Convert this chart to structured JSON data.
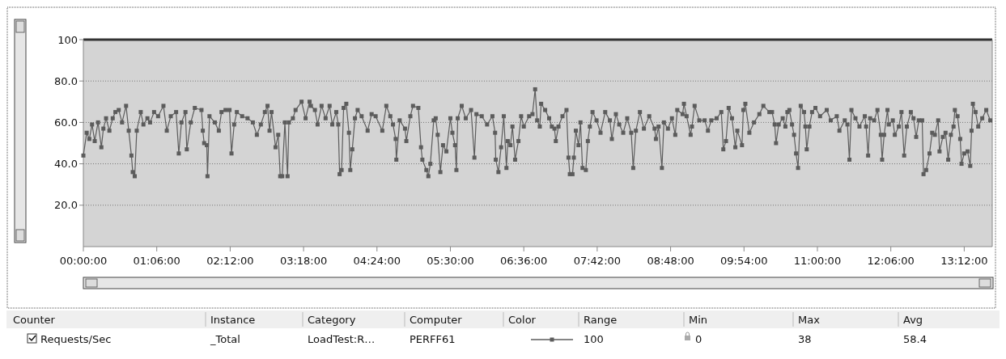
{
  "chart_data": {
    "type": "line",
    "legend": "bottom",
    "grid": "y",
    "marker": "square",
    "line_style": "solid",
    "ylim": [
      0,
      100
    ],
    "yticks": [
      {
        "value": 20,
        "label": "20.0"
      },
      {
        "value": 40,
        "label": "40.0"
      },
      {
        "value": 60,
        "label": "60.0"
      },
      {
        "value": 80,
        "label": "80.0"
      },
      100
    ],
    "xlim": [
      0,
      13.62
    ],
    "xticks": [
      {
        "value": 0,
        "label": "00:00:00"
      },
      {
        "value": 1.1,
        "label": "01:06:00"
      },
      {
        "value": 2.2,
        "label": "02:12:00"
      },
      {
        "value": 3.3,
        "label": "03:18:00"
      },
      {
        "value": 4.4,
        "label": "04:24:00"
      },
      {
        "value": 5.5,
        "label": "05:30:00"
      },
      {
        "value": 6.6,
        "label": "06:36:00"
      },
      {
        "value": 7.7,
        "label": "07:42:00"
      },
      {
        "value": 8.8,
        "label": "08:48:00"
      },
      {
        "value": 9.9,
        "label": "09:54:00"
      },
      {
        "value": 11,
        "label": "11:00:00"
      },
      {
        "value": 12.1,
        "label": "12:06:00"
      },
      {
        "value": 13.2,
        "label": "13:12:00"
      }
    ],
    "annotations": [
      "Counter",
      "Instance",
      "Category",
      "Computer",
      "Color",
      "Range",
      "Min",
      "Max",
      "Avg",
      "_Total",
      "LoadTest:R…",
      "PERFF61",
      "100",
      "0",
      "38",
      "58.4"
    ],
    "series": [
      {
        "name": "Requests/Sec",
        "color": "#5c5c5c",
        "x": [
          0,
          0.05,
          0.09,
          0.13,
          0.17,
          0.22,
          0.27,
          0.3,
          0.34,
          0.39,
          0.44,
          0.48,
          0.53,
          0.58,
          0.64,
          0.68,
          0.72,
          0.74,
          0.77,
          0.8,
          0.86,
          0.9,
          0.96,
          1,
          1.06,
          1.12,
          1.2,
          1.25,
          1.31,
          1.39,
          1.43,
          1.47,
          1.53,
          1.55,
          1.61,
          1.67,
          1.77,
          1.79,
          1.81,
          1.85,
          1.86,
          1.89,
          1.97,
          2.03,
          2.07,
          2.13,
          2.19,
          2.22,
          2.26,
          2.3,
          2.38,
          2.46,
          2.54,
          2.6,
          2.66,
          2.72,
          2.76,
          2.79,
          2.82,
          2.88,
          2.92,
          2.95,
          2.98,
          3.02,
          3.06,
          3.08,
          3.14,
          3.18,
          3.27,
          3.33,
          3.39,
          3.41,
          3.47,
          3.51,
          3.57,
          3.63,
          3.69,
          3.73,
          3.79,
          3.82,
          3.84,
          3.87,
          3.9,
          3.94,
          3.98,
          4,
          4.03,
          4.07,
          4.11,
          4.17,
          4.26,
          4.32,
          4.38,
          4.48,
          4.54,
          4.6,
          4.64,
          4.68,
          4.69,
          4.74,
          4.82,
          4.84,
          4.9,
          4.94,
          5.02,
          5.06,
          5.08,
          5.14,
          5.17,
          5.2,
          5.25,
          5.28,
          5.31,
          5.35,
          5.39,
          5.44,
          5.5,
          5.53,
          5.57,
          5.59,
          5.61,
          5.67,
          5.73,
          5.81,
          5.86,
          5.89,
          5.97,
          6.05,
          6.13,
          6.17,
          6.18,
          6.22,
          6.26,
          6.3,
          6.34,
          6.36,
          6.4,
          6.43,
          6.47,
          6.52,
          6.56,
          6.6,
          6.68,
          6.73,
          6.77,
          6.8,
          6.84,
          6.86,
          6.92,
          6.98,
          7.02,
          7.06,
          7.08,
          7.12,
          7.18,
          7.24,
          7.27,
          7.29,
          7.33,
          7.35,
          7.38,
          7.42,
          7.45,
          7.48,
          7.53,
          7.56,
          7.59,
          7.63,
          7.69,
          7.75,
          7.82,
          7.89,
          7.92,
          7.98,
          8.03,
          8.09,
          8.15,
          8.21,
          8.24,
          8.28,
          8.34,
          8.4,
          8.48,
          8.56,
          8.58,
          8.62,
          8.67,
          8.7,
          8.76,
          8.82,
          8.87,
          8.9,
          8.98,
          9,
          9.04,
          9.1,
          9.12,
          9.16,
          9.23,
          9.31,
          9.36,
          9.41,
          9.49,
          9.56,
          9.59,
          9.63,
          9.67,
          9.72,
          9.77,
          9.8,
          9.87,
          9.89,
          9.92,
          9.98,
          10.05,
          10.13,
          10.19,
          10.28,
          10.32,
          10.36,
          10.38,
          10.42,
          10.48,
          10.52,
          10.55,
          10.58,
          10.62,
          10.65,
          10.68,
          10.71,
          10.75,
          10.8,
          10.82,
          10.84,
          10.88,
          10.92,
          10.97,
          11.04,
          11.14,
          11.2,
          11.29,
          11.33,
          11.41,
          11.45,
          11.48,
          11.51,
          11.57,
          11.63,
          11.71,
          11.73,
          11.76,
          11.79,
          11.85,
          11.9,
          11.95,
          11.97,
          12,
          12.05,
          12.07,
          12.13,
          12.16,
          12.22,
          12.26,
          12.3,
          12.34,
          12.4,
          12.44,
          12.48,
          12.52,
          12.57,
          12.59,
          12.63,
          12.68,
          12.72,
          12.76,
          12.81,
          12.83,
          12.88,
          12.92,
          12.96,
          13,
          13.04,
          13.06,
          13.1,
          13.14,
          13.16,
          13.2,
          13.25,
          13.29,
          13.31,
          13.33,
          13.37,
          13.41,
          13.47,
          13.53,
          13.59
        ],
        "values": [
          44,
          55,
          52,
          59,
          51,
          60,
          48,
          57,
          62,
          56,
          62,
          65,
          66,
          60,
          68,
          56,
          44,
          36,
          34,
          56,
          65,
          59,
          62,
          60,
          65,
          63,
          68,
          56,
          63,
          65,
          45,
          60,
          65,
          47,
          60,
          67,
          66,
          56,
          50,
          49,
          34,
          63,
          60,
          56,
          65,
          66,
          66,
          45,
          59,
          65,
          63,
          62,
          60,
          54,
          59,
          65,
          68,
          56,
          65,
          48,
          54,
          34,
          34,
          60,
          34,
          60,
          62,
          66,
          70,
          62,
          70,
          68,
          66,
          59,
          68,
          62,
          68,
          59,
          65,
          59,
          35,
          37,
          67,
          69,
          55,
          37,
          47,
          62,
          66,
          63,
          56,
          64,
          63,
          56,
          68,
          63,
          59,
          52,
          42,
          61,
          57,
          51,
          63,
          68,
          67,
          48,
          42,
          37,
          34,
          40,
          61,
          62,
          54,
          36,
          49,
          46,
          62,
          55,
          49,
          37,
          62,
          68,
          62,
          66,
          43,
          64,
          63,
          59,
          63,
          55,
          42,
          36,
          48,
          63,
          38,
          51,
          49,
          58,
          42,
          51,
          63,
          58,
          63,
          64,
          76,
          61,
          58,
          69,
          66,
          62,
          58,
          57,
          51,
          58,
          63,
          66,
          43,
          35,
          35,
          43,
          56,
          49,
          60,
          38,
          37,
          51,
          58,
          65,
          61,
          55,
          65,
          61,
          52,
          64,
          59,
          55,
          62,
          55,
          38,
          56,
          65,
          57,
          63,
          57,
          52,
          58,
          38,
          60,
          57,
          62,
          54,
          66,
          64,
          69,
          63,
          54,
          58,
          68,
          61,
          61,
          56,
          61,
          62,
          65,
          47,
          51,
          67,
          62,
          48,
          56,
          49,
          66,
          69,
          55,
          60,
          64,
          68,
          65,
          65,
          59,
          50,
          59,
          62,
          58,
          65,
          66,
          59,
          54,
          45,
          38,
          68,
          65,
          58,
          47,
          58,
          65,
          67,
          63,
          66,
          61,
          63,
          56,
          61,
          59,
          42,
          66,
          62,
          58,
          63,
          58,
          44,
          62,
          61,
          66,
          54,
          42,
          54,
          66,
          59,
          61,
          54,
          58,
          65,
          44,
          58,
          65,
          62,
          53,
          61,
          61,
          35,
          37,
          45,
          55,
          54,
          61,
          46,
          53,
          55,
          42,
          54,
          58,
          66,
          63,
          52,
          40,
          45,
          46,
          39,
          56,
          69,
          65,
          58,
          62,
          66,
          61
        ]
      }
    ]
  }
}
